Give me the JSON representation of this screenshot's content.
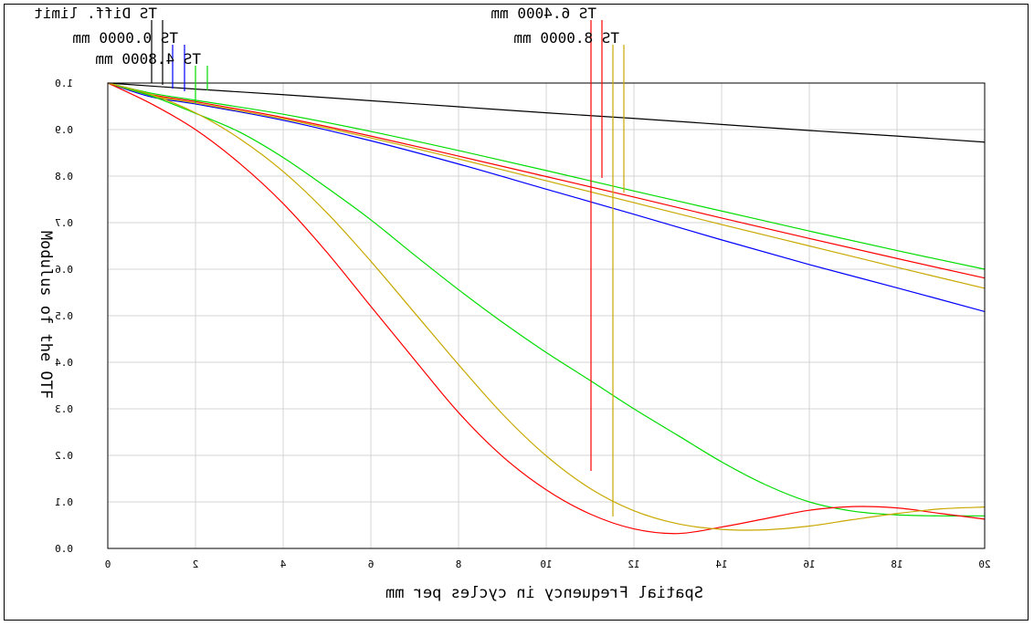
{
  "chart_data": {
    "type": "line",
    "xlabel": "Spatial Frequency in cycles per mm",
    "ylabel": "Modulus of the OTF",
    "x_ticks": [
      "0",
      "2",
      "4",
      "6",
      "8",
      "10",
      "12",
      "14",
      "16",
      "18",
      "20"
    ],
    "y_ticks": [
      "0.0",
      "0.1",
      "0.2",
      "0.3",
      "0.4",
      "0.5",
      "0.6",
      "0.7",
      "0.8",
      "0.9",
      "1.0"
    ],
    "xlim": [
      0,
      20
    ],
    "ylim": [
      0,
      1.0
    ],
    "grid": true,
    "mirrored": true,
    "legend": [
      {
        "label": "TS Diff. limit",
        "color": "#000000"
      },
      {
        "label": "TS 0.0000 mm",
        "color": "#0000ff"
      },
      {
        "label": "TS 4.8000 mm",
        "color": "#00dd00"
      },
      {
        "label": "TS 6.4000 mm",
        "color": "#ff0000"
      },
      {
        "label": "TS 8.0000 mm",
        "color": "#c8a800"
      }
    ],
    "series": [
      {
        "name": "TS Diff. limit",
        "color": "#000000",
        "x": [
          0,
          2,
          4,
          6,
          8,
          10,
          12,
          14,
          16,
          18,
          20
        ],
        "y": [
          1.0,
          0.987,
          0.975,
          0.962,
          0.949,
          0.936,
          0.924,
          0.911,
          0.898,
          0.886,
          0.873
        ]
      },
      {
        "name": "TS 0.0000 mm",
        "color": "#0000ff",
        "x": [
          0,
          1,
          2,
          4,
          6,
          8,
          10,
          12,
          14,
          16,
          18,
          20
        ],
        "y": [
          1.0,
          0.97,
          0.955,
          0.92,
          0.876,
          0.826,
          0.772,
          0.718,
          0.663,
          0.61,
          0.56,
          0.509
        ]
      },
      {
        "name": "TS 4.8000 mm",
        "color": "#00dd00",
        "x": [
          0,
          1,
          2,
          4,
          6,
          8,
          10,
          12,
          14,
          16,
          18,
          20
        ],
        "y": [
          1.0,
          0.978,
          0.963,
          0.933,
          0.896,
          0.855,
          0.812,
          0.768,
          0.725,
          0.682,
          0.64,
          0.6
        ]
      },
      {
        "name": "TS 6.4000 mm",
        "color": "#ff0000",
        "x": [
          0,
          1,
          2,
          4,
          6,
          8,
          10,
          12,
          14,
          16,
          18,
          20
        ],
        "y": [
          1.0,
          0.975,
          0.96,
          0.926,
          0.886,
          0.843,
          0.799,
          0.755,
          0.71,
          0.666,
          0.623,
          0.581
        ]
      },
      {
        "name": "TS 8.0000 mm",
        "color": "#c8a800",
        "x": [
          0,
          1,
          2,
          4,
          6,
          8,
          10,
          12,
          14,
          16,
          18,
          20
        ],
        "y": [
          1.0,
          0.973,
          0.957,
          0.923,
          0.882,
          0.837,
          0.79,
          0.743,
          0.696,
          0.65,
          0.604,
          0.559
        ]
      },
      {
        "name": "TS 4.8000 mm",
        "color": "#00dd00",
        "x": [
          0,
          1,
          2,
          3,
          4,
          5,
          6,
          7,
          8,
          9,
          10,
          11,
          12,
          13,
          14,
          15,
          16,
          17,
          18,
          19,
          20
        ],
        "y": [
          1.0,
          0.972,
          0.935,
          0.895,
          0.84,
          0.775,
          0.706,
          0.63,
          0.556,
          0.486,
          0.421,
          0.361,
          0.3,
          0.243,
          0.186,
          0.137,
          0.1,
          0.08,
          0.072,
          0.07,
          0.07
        ]
      },
      {
        "name": "TS 6.4000 mm",
        "color": "#ff0000",
        "x": [
          0,
          1,
          2,
          3,
          4,
          5,
          6,
          7,
          8,
          9,
          10,
          11,
          12,
          13,
          14,
          15,
          16,
          17,
          18,
          19,
          20
        ],
        "y": [
          1.0,
          0.955,
          0.9,
          0.828,
          0.741,
          0.636,
          0.52,
          0.405,
          0.292,
          0.198,
          0.126,
          0.074,
          0.042,
          0.032,
          0.046,
          0.064,
          0.082,
          0.09,
          0.087,
          0.075,
          0.063
        ]
      },
      {
        "name": "TS 8.0000 mm",
        "color": "#c8a800",
        "x": [
          0,
          1,
          2,
          3,
          4,
          5,
          6,
          7,
          8,
          9,
          10,
          11,
          12,
          13,
          14,
          15,
          16,
          17,
          18,
          19,
          20
        ],
        "y": [
          1.0,
          0.975,
          0.936,
          0.881,
          0.81,
          0.721,
          0.617,
          0.506,
          0.395,
          0.289,
          0.199,
          0.129,
          0.081,
          0.053,
          0.041,
          0.04,
          0.048,
          0.062,
          0.075,
          0.085,
          0.089
        ]
      }
    ]
  }
}
